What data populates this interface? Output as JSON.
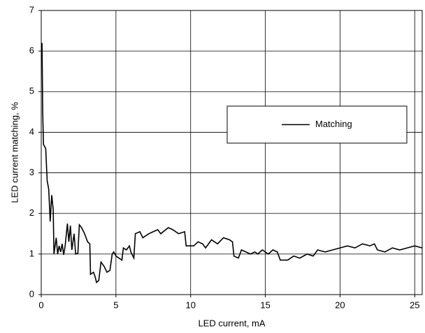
{
  "chart_data": {
    "type": "line",
    "xlabel": "LED current, mA",
    "ylabel": "LED current matching, %",
    "xlim": [
      0,
      25.5
    ],
    "xticks": [
      0,
      5,
      10,
      15,
      20,
      25
    ],
    "ylim": [
      0,
      7
    ],
    "yticks": [
      0,
      1,
      2,
      3,
      4,
      5,
      6,
      7
    ],
    "grid": true,
    "legend_position": "center right",
    "x": [
      0.05,
      0.1,
      0.15,
      0.3,
      0.4,
      0.5,
      0.6,
      0.7,
      0.8,
      0.85,
      1.0,
      1.1,
      1.2,
      1.3,
      1.4,
      1.5,
      1.6,
      1.75,
      1.85,
      1.95,
      2.05,
      2.2,
      2.3,
      2.45,
      2.55,
      2.7,
      2.9,
      3.1,
      3.25,
      3.3,
      3.5,
      3.6,
      3.7,
      3.85,
      4.0,
      4.2,
      4.4,
      4.6,
      4.75,
      4.85,
      5.0,
      5.2,
      5.4,
      5.5,
      5.7,
      5.9,
      6.0,
      6.2,
      6.3,
      6.6,
      6.8,
      7.2,
      7.5,
      7.8,
      8.0,
      8.5,
      8.8,
      9.2,
      9.6,
      9.7,
      10.2,
      10.5,
      10.8,
      11.0,
      11.4,
      11.8,
      12.2,
      12.6,
      12.8,
      12.9,
      13.2,
      13.4,
      13.7,
      14.0,
      14.3,
      14.5,
      14.8,
      15.2,
      15.5,
      15.8,
      16.0,
      16.5,
      16.9,
      17.3,
      17.8,
      18.2,
      18.5,
      19.0,
      19.5,
      20.0,
      20.5,
      21.0,
      21.5,
      22.0,
      22.3,
      22.5,
      23.0,
      23.5,
      24.0,
      24.5,
      25.0,
      25.5
    ],
    "series": [
      {
        "name": "Matching",
        "color": "#000000",
        "values": [
          6.2,
          4.5,
          3.7,
          3.6,
          2.8,
          2.6,
          1.8,
          2.45,
          2.1,
          1.0,
          1.4,
          1.0,
          1.2,
          1.05,
          1.25,
          0.98,
          1.2,
          1.75,
          1.3,
          1.7,
          1.1,
          1.5,
          1.0,
          1.02,
          1.72,
          1.65,
          1.5,
          1.3,
          1.25,
          0.5,
          0.55,
          0.45,
          0.3,
          0.35,
          0.8,
          0.7,
          0.55,
          0.6,
          1.0,
          1.05,
          0.95,
          0.9,
          0.85,
          1.15,
          1.1,
          1.2,
          1.05,
          0.9,
          1.5,
          1.55,
          1.4,
          1.5,
          1.55,
          1.6,
          1.5,
          1.65,
          1.6,
          1.5,
          1.55,
          1.2,
          1.2,
          1.3,
          1.25,
          1.15,
          1.35,
          1.25,
          1.4,
          1.35,
          1.3,
          0.95,
          0.9,
          1.1,
          1.05,
          1.0,
          1.05,
          1.0,
          1.1,
          1.0,
          1.1,
          1.05,
          0.85,
          0.85,
          0.95,
          0.9,
          1.0,
          0.95,
          1.1,
          1.05,
          1.1,
          1.15,
          1.2,
          1.15,
          1.25,
          1.2,
          1.25,
          1.1,
          1.05,
          1.15,
          1.1,
          1.15,
          1.2,
          1.15
        ]
      }
    ]
  }
}
